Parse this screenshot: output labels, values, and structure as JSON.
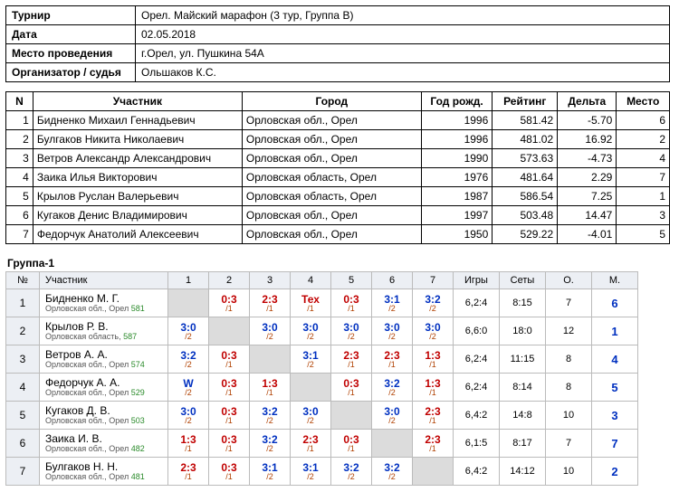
{
  "info": {
    "rows": [
      {
        "label": "Турнир",
        "value": "Орел. Майский марафон (3 тур, Группа B)"
      },
      {
        "label": "Дата",
        "value": "02.05.2018"
      },
      {
        "label": "Место проведения",
        "value": "г.Орел, ул. Пушкина 54А"
      },
      {
        "label": "Организатор / судья",
        "value": "Ольшаков К.С."
      }
    ]
  },
  "participants": {
    "headers": {
      "n": "N",
      "name": "Участник",
      "city": "Город",
      "year": "Год рожд.",
      "rating": "Рейтинг",
      "delta": "Дельта",
      "place": "Место"
    },
    "rows": [
      {
        "n": "1",
        "name": "Бидненко Михаил Геннадьевич",
        "city": "Орловская обл., Орел",
        "year": "1996",
        "rating": "581.42",
        "delta": "-5.70",
        "place": "6"
      },
      {
        "n": "2",
        "name": "Булгаков Никита Николаевич",
        "city": "Орловская обл., Орел",
        "year": "1996",
        "rating": "481.02",
        "delta": "16.92",
        "place": "2"
      },
      {
        "n": "3",
        "name": "Ветров Александр Александрович",
        "city": "Орловская обл., Орел",
        "year": "1990",
        "rating": "573.63",
        "delta": "-4.73",
        "place": "4"
      },
      {
        "n": "4",
        "name": "Заика Илья Викторович",
        "city": "Орловская область, Орел",
        "year": "1976",
        "rating": "481.64",
        "delta": "2.29",
        "place": "7"
      },
      {
        "n": "5",
        "name": "Крылов Руслан Валерьевич",
        "city": "Орловская область, Орел",
        "year": "1987",
        "rating": "586.54",
        "delta": "7.25",
        "place": "1"
      },
      {
        "n": "6",
        "name": "Кугаков Денис Владимирович",
        "city": "Орловская обл., Орел",
        "year": "1997",
        "rating": "503.48",
        "delta": "14.47",
        "place": "3"
      },
      {
        "n": "7",
        "name": "Федорчук Анатолий Алексеевич",
        "city": "Орловская обл., Орел",
        "year": "1950",
        "rating": "529.22",
        "delta": "-4.01",
        "place": "5"
      }
    ]
  },
  "cross": {
    "title": "Группа-1",
    "headers": {
      "no": "№",
      "part": "Участник",
      "cols": [
        "1",
        "2",
        "3",
        "4",
        "5",
        "6",
        "7"
      ],
      "games": "Игры",
      "sets": "Сеты",
      "o": "О.",
      "m": "М."
    },
    "rows": [
      {
        "no": "1",
        "name": "Бидненко М. Г.",
        "sub": "Орловская обл., Орел",
        "rat": "581",
        "cells": [
          null,
          {
            "m": "0:3",
            "w": false,
            "s": "/1"
          },
          {
            "m": "2:3",
            "w": false,
            "s": "/1"
          },
          {
            "m": "Тех",
            "w": false,
            "s": "/1"
          },
          {
            "m": "0:3",
            "w": false,
            "s": "/1"
          },
          {
            "m": "3:1",
            "w": true,
            "s": "/2"
          },
          {
            "m": "3:2",
            "w": true,
            "s": "/2"
          }
        ],
        "games": "6,2:4",
        "sets": "8:15",
        "o": "7",
        "m": "6"
      },
      {
        "no": "2",
        "name": "Крылов Р. В.",
        "sub": "Орловская область,",
        "rat": "587",
        "cells": [
          {
            "m": "3:0",
            "w": true,
            "s": "/2"
          },
          null,
          {
            "m": "3:0",
            "w": true,
            "s": "/2"
          },
          {
            "m": "3:0",
            "w": true,
            "s": "/2"
          },
          {
            "m": "3:0",
            "w": true,
            "s": "/2"
          },
          {
            "m": "3:0",
            "w": true,
            "s": "/2"
          },
          {
            "m": "3:0",
            "w": true,
            "s": "/2"
          }
        ],
        "games": "6,6:0",
        "sets": "18:0",
        "o": "12",
        "m": "1"
      },
      {
        "no": "3",
        "name": "Ветров А. А.",
        "sub": "Орловская обл., Орел",
        "rat": "574",
        "cells": [
          {
            "m": "3:2",
            "w": true,
            "s": "/2"
          },
          {
            "m": "0:3",
            "w": false,
            "s": "/1"
          },
          null,
          {
            "m": "3:1",
            "w": true,
            "s": "/2"
          },
          {
            "m": "2:3",
            "w": false,
            "s": "/1"
          },
          {
            "m": "2:3",
            "w": false,
            "s": "/1"
          },
          {
            "m": "1:3",
            "w": false,
            "s": "/1"
          }
        ],
        "games": "6,2:4",
        "sets": "11:15",
        "o": "8",
        "m": "4"
      },
      {
        "no": "4",
        "name": "Федорчук А. А.",
        "sub": "Орловская обл., Орел",
        "rat": "529",
        "cells": [
          {
            "m": "W",
            "w": true,
            "s": "/2"
          },
          {
            "m": "0:3",
            "w": false,
            "s": "/1"
          },
          {
            "m": "1:3",
            "w": false,
            "s": "/1"
          },
          null,
          {
            "m": "0:3",
            "w": false,
            "s": "/1"
          },
          {
            "m": "3:2",
            "w": true,
            "s": "/2"
          },
          {
            "m": "1:3",
            "w": false,
            "s": "/1"
          }
        ],
        "games": "6,2:4",
        "sets": "8:14",
        "o": "8",
        "m": "5"
      },
      {
        "no": "5",
        "name": "Кугаков Д. В.",
        "sub": "Орловская обл., Орел",
        "rat": "503",
        "cells": [
          {
            "m": "3:0",
            "w": true,
            "s": "/2"
          },
          {
            "m": "0:3",
            "w": false,
            "s": "/1"
          },
          {
            "m": "3:2",
            "w": true,
            "s": "/2"
          },
          {
            "m": "3:0",
            "w": true,
            "s": "/2"
          },
          null,
          {
            "m": "3:0",
            "w": true,
            "s": "/2"
          },
          {
            "m": "2:3",
            "w": false,
            "s": "/1"
          }
        ],
        "games": "6,4:2",
        "sets": "14:8",
        "o": "10",
        "m": "3"
      },
      {
        "no": "6",
        "name": "Заика И. В.",
        "sub": "Орловская обл., Орел",
        "rat": "482",
        "cells": [
          {
            "m": "1:3",
            "w": false,
            "s": "/1"
          },
          {
            "m": "0:3",
            "w": false,
            "s": "/1"
          },
          {
            "m": "3:2",
            "w": true,
            "s": "/2"
          },
          {
            "m": "2:3",
            "w": false,
            "s": "/1"
          },
          {
            "m": "0:3",
            "w": false,
            "s": "/1"
          },
          null,
          {
            "m": "2:3",
            "w": false,
            "s": "/1"
          }
        ],
        "games": "6,1:5",
        "sets": "8:17",
        "o": "7",
        "m": "7"
      },
      {
        "no": "7",
        "name": "Булгаков Н. Н.",
        "sub": "Орловская обл., Орел",
        "rat": "481",
        "cells": [
          {
            "m": "2:3",
            "w": false,
            "s": "/1"
          },
          {
            "m": "0:3",
            "w": false,
            "s": "/1"
          },
          {
            "m": "3:1",
            "w": true,
            "s": "/2"
          },
          {
            "m": "3:1",
            "w": true,
            "s": "/2"
          },
          {
            "m": "3:2",
            "w": true,
            "s": "/2"
          },
          {
            "m": "3:2",
            "w": true,
            "s": "/2"
          },
          null
        ],
        "games": "6,4:2",
        "sets": "14:12",
        "o": "10",
        "m": "2"
      }
    ]
  }
}
